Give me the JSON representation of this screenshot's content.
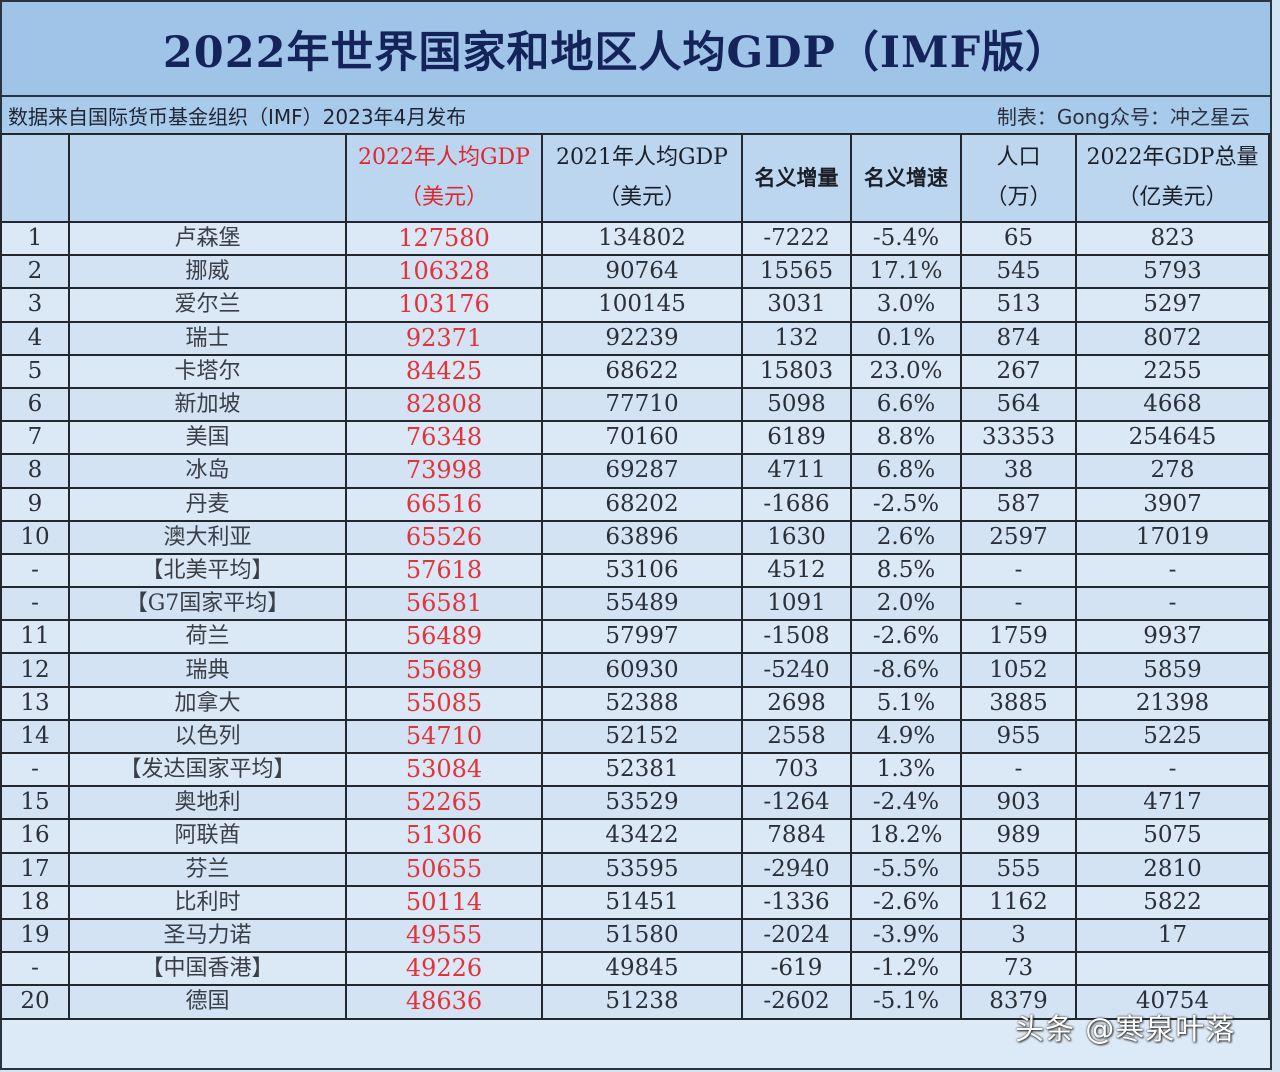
{
  "header": {
    "title": "2022年世界国家和地区人均GDP（IMF版）",
    "source_note": "数据来自国际货币基金组织（IMF）2023年4月发布",
    "author_note": "制表：Gong众号：冲之星云"
  },
  "columns": [
    {
      "line1": "",
      "line2": ""
    },
    {
      "line1": "",
      "line2": ""
    },
    {
      "line1": "2022年人均GDP",
      "line2": "（美元）"
    },
    {
      "line1": "2021年人均GDP",
      "line2": "（美元）"
    },
    {
      "line1": "名义增量",
      "line2": ""
    },
    {
      "line1": "名义增速",
      "line2": ""
    },
    {
      "line1": "人口",
      "line2": "（万）"
    },
    {
      "line1": "2022年GDP总量",
      "line2": "（亿美元）"
    }
  ],
  "rows": [
    {
      "rank": "1",
      "name": "卢森堡",
      "gdp2022": "127580",
      "gdp2021": "134802",
      "inc": "-7222",
      "rate": "-5.4%",
      "pop": "65",
      "total": "823"
    },
    {
      "rank": "2",
      "name": "挪威",
      "gdp2022": "106328",
      "gdp2021": "90764",
      "inc": "15565",
      "rate": "17.1%",
      "pop": "545",
      "total": "5793"
    },
    {
      "rank": "3",
      "name": "爱尔兰",
      "gdp2022": "103176",
      "gdp2021": "100145",
      "inc": "3031",
      "rate": "3.0%",
      "pop": "513",
      "total": "5297"
    },
    {
      "rank": "4",
      "name": "瑞士",
      "gdp2022": "92371",
      "gdp2021": "92239",
      "inc": "132",
      "rate": "0.1%",
      "pop": "874",
      "total": "8072"
    },
    {
      "rank": "5",
      "name": "卡塔尔",
      "gdp2022": "84425",
      "gdp2021": "68622",
      "inc": "15803",
      "rate": "23.0%",
      "pop": "267",
      "total": "2255"
    },
    {
      "rank": "6",
      "name": "新加坡",
      "gdp2022": "82808",
      "gdp2021": "77710",
      "inc": "5098",
      "rate": "6.6%",
      "pop": "564",
      "total": "4668"
    },
    {
      "rank": "7",
      "name": "美国",
      "gdp2022": "76348",
      "gdp2021": "70160",
      "inc": "6189",
      "rate": "8.8%",
      "pop": "33353",
      "total": "254645"
    },
    {
      "rank": "8",
      "name": "冰岛",
      "gdp2022": "73998",
      "gdp2021": "69287",
      "inc": "4711",
      "rate": "6.8%",
      "pop": "38",
      "total": "278"
    },
    {
      "rank": "9",
      "name": "丹麦",
      "gdp2022": "66516",
      "gdp2021": "68202",
      "inc": "-1686",
      "rate": "-2.5%",
      "pop": "587",
      "total": "3907"
    },
    {
      "rank": "10",
      "name": "澳大利亚",
      "gdp2022": "65526",
      "gdp2021": "63896",
      "inc": "1630",
      "rate": "2.6%",
      "pop": "2597",
      "total": "17019"
    },
    {
      "rank": "-",
      "name": "【北美平均】",
      "gdp2022": "57618",
      "gdp2021": "53106",
      "inc": "4512",
      "rate": "8.5%",
      "pop": "-",
      "total": "-"
    },
    {
      "rank": "-",
      "name": "【G7国家平均】",
      "gdp2022": "56581",
      "gdp2021": "55489",
      "inc": "1091",
      "rate": "2.0%",
      "pop": "-",
      "total": "-"
    },
    {
      "rank": "11",
      "name": "荷兰",
      "gdp2022": "56489",
      "gdp2021": "57997",
      "inc": "-1508",
      "rate": "-2.6%",
      "pop": "1759",
      "total": "9937"
    },
    {
      "rank": "12",
      "name": "瑞典",
      "gdp2022": "55689",
      "gdp2021": "60930",
      "inc": "-5240",
      "rate": "-8.6%",
      "pop": "1052",
      "total": "5859"
    },
    {
      "rank": "13",
      "name": "加拿大",
      "gdp2022": "55085",
      "gdp2021": "52388",
      "inc": "2698",
      "rate": "5.1%",
      "pop": "3885",
      "total": "21398"
    },
    {
      "rank": "14",
      "name": "以色列",
      "gdp2022": "54710",
      "gdp2021": "52152",
      "inc": "2558",
      "rate": "4.9%",
      "pop": "955",
      "total": "5225"
    },
    {
      "rank": "-",
      "name": "【发达国家平均】",
      "gdp2022": "53084",
      "gdp2021": "52381",
      "inc": "703",
      "rate": "1.3%",
      "pop": "-",
      "total": "-"
    },
    {
      "rank": "15",
      "name": "奥地利",
      "gdp2022": "52265",
      "gdp2021": "53529",
      "inc": "-1264",
      "rate": "-2.4%",
      "pop": "903",
      "total": "4717"
    },
    {
      "rank": "16",
      "name": "阿联酋",
      "gdp2022": "51306",
      "gdp2021": "43422",
      "inc": "7884",
      "rate": "18.2%",
      "pop": "989",
      "total": "5075"
    },
    {
      "rank": "17",
      "name": "芬兰",
      "gdp2022": "50655",
      "gdp2021": "53595",
      "inc": "-2940",
      "rate": "-5.5%",
      "pop": "555",
      "total": "2810"
    },
    {
      "rank": "18",
      "name": "比利时",
      "gdp2022": "50114",
      "gdp2021": "51451",
      "inc": "-1336",
      "rate": "-2.6%",
      "pop": "1162",
      "total": "5822"
    },
    {
      "rank": "19",
      "name": "圣马力诺",
      "gdp2022": "49555",
      "gdp2021": "51580",
      "inc": "-2024",
      "rate": "-3.9%",
      "pop": "3",
      "total": "17"
    },
    {
      "rank": "-",
      "name": "【中国香港】",
      "gdp2022": "49226",
      "gdp2021": "49845",
      "inc": "-619",
      "rate": "-1.2%",
      "pop": "73",
      "total": ""
    },
    {
      "rank": "20",
      "name": "德国",
      "gdp2022": "48636",
      "gdp2021": "51238",
      "inc": "-2602",
      "rate": "-5.1%",
      "pop": "8379",
      "total": "40754"
    }
  ],
  "watermark": "头条 @寒泉叶落",
  "colors": {
    "title": "#14245a",
    "highlight_red": "#e2333a",
    "title_band": "#9fc4e8",
    "cell_bg": "#dbe8f5"
  }
}
